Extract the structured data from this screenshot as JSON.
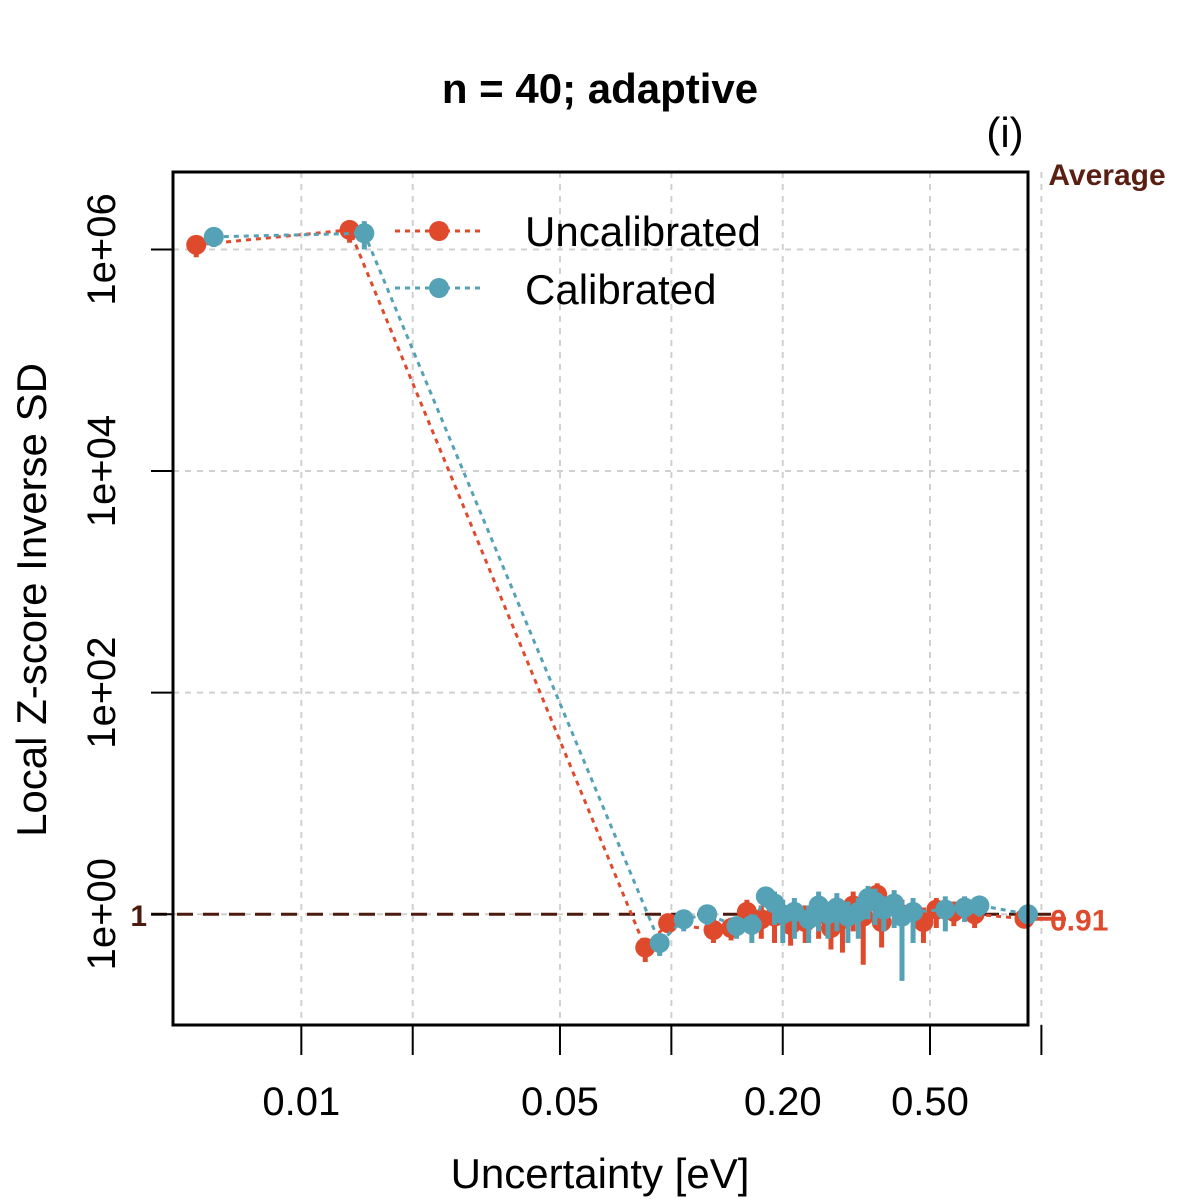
{
  "chart_data": {
    "type": "scatter",
    "title": "n = 40; adaptive",
    "panel_tag": "(i)",
    "xlabel": "Uncertainty [eV]",
    "ylabel": "Local Z-score Inverse SD",
    "x_scale": "log",
    "y_scale": "log",
    "xlim": [
      0.0045,
      0.92
    ],
    "ylim": [
      0.1,
      5000000
    ],
    "x_ticks": [
      {
        "value": 0.01,
        "label": "0.01"
      },
      {
        "value": 0.02,
        "label": ""
      },
      {
        "value": 0.05,
        "label": "0.05"
      },
      {
        "value": 0.1,
        "label": ""
      },
      {
        "value": 0.2,
        "label": "0.20"
      },
      {
        "value": 0.5,
        "label": "0.50"
      },
      {
        "value": 1.0,
        "label": ""
      }
    ],
    "y_ticks": [
      {
        "value": 1,
        "label": "1e+00"
      },
      {
        "value": 100,
        "label": "1e+02"
      },
      {
        "value": 10000,
        "label": "1e+04"
      },
      {
        "value": 1000000,
        "label": "1e+06"
      }
    ],
    "grid": true,
    "legend_position": "top-center",
    "average_label": "Average",
    "reference": {
      "value": 1,
      "label": "1",
      "color": "#4d1a0e"
    },
    "series": [
      {
        "name": "Uncalibrated",
        "color": "#e04a2c",
        "average": {
          "value": 0.91,
          "label": "0.91"
        },
        "points": [
          {
            "x": 0.0052,
            "y": 1100000,
            "lo": 850000,
            "hi": 1300000
          },
          {
            "x": 0.0135,
            "y": 1500000,
            "lo": 1150000,
            "hi": 1800000
          },
          {
            "x": 0.085,
            "y": 0.5,
            "lo": 0.37,
            "hi": 0.6
          },
          {
            "x": 0.098,
            "y": 0.83,
            "lo": 0.68,
            "hi": 0.97
          },
          {
            "x": 0.13,
            "y": 0.72,
            "lo": 0.55,
            "hi": 0.92
          },
          {
            "x": 0.145,
            "y": 0.75,
            "lo": 0.58,
            "hi": 0.93
          },
          {
            "x": 0.16,
            "y": 1.05,
            "lo": 0.72,
            "hi": 1.35
          },
          {
            "x": 0.175,
            "y": 0.9,
            "lo": 0.6,
            "hi": 1.2
          },
          {
            "x": 0.19,
            "y": 0.95,
            "lo": 0.55,
            "hi": 1.3
          },
          {
            "x": 0.21,
            "y": 0.8,
            "lo": 0.52,
            "hi": 1.1
          },
          {
            "x": 0.23,
            "y": 0.85,
            "lo": 0.55,
            "hi": 1.2
          },
          {
            "x": 0.25,
            "y": 1.0,
            "lo": 0.6,
            "hi": 1.4
          },
          {
            "x": 0.27,
            "y": 0.75,
            "lo": 0.48,
            "hi": 1.05
          },
          {
            "x": 0.29,
            "y": 0.9,
            "lo": 0.45,
            "hi": 1.25
          },
          {
            "x": 0.31,
            "y": 1.2,
            "lo": 0.7,
            "hi": 1.6
          },
          {
            "x": 0.33,
            "y": 0.95,
            "lo": 0.35,
            "hi": 1.35
          },
          {
            "x": 0.36,
            "y": 1.5,
            "lo": 0.9,
            "hi": 1.9
          },
          {
            "x": 0.37,
            "y": 0.85,
            "lo": 0.5,
            "hi": 1.2
          },
          {
            "x": 0.42,
            "y": 1.0,
            "lo": 0.6,
            "hi": 1.35
          },
          {
            "x": 0.48,
            "y": 0.85,
            "lo": 0.55,
            "hi": 1.15
          },
          {
            "x": 0.52,
            "y": 1.1,
            "lo": 0.75,
            "hi": 1.4
          },
          {
            "x": 0.58,
            "y": 1.05,
            "lo": 0.78,
            "hi": 1.3
          },
          {
            "x": 0.66,
            "y": 1.0,
            "lo": 0.75,
            "hi": 1.28
          },
          {
            "x": 0.9,
            "y": 0.91,
            "lo": 0.75,
            "hi": 1.05
          }
        ]
      },
      {
        "name": "Calibrated",
        "color": "#55a1b6",
        "points": [
          {
            "x": 0.0058,
            "y": 1300000,
            "lo": 1050000,
            "hi": 1550000
          },
          {
            "x": 0.0148,
            "y": 1400000,
            "lo": 1000000,
            "hi": 1800000
          },
          {
            "x": 0.093,
            "y": 0.55,
            "lo": 0.42,
            "hi": 0.67
          },
          {
            "x": 0.108,
            "y": 0.9,
            "lo": 0.7,
            "hi": 1.1
          },
          {
            "x": 0.125,
            "y": 1.0,
            "lo": 0.8,
            "hi": 1.2
          },
          {
            "x": 0.15,
            "y": 0.78,
            "lo": 0.6,
            "hi": 0.95
          },
          {
            "x": 0.165,
            "y": 0.8,
            "lo": 0.55,
            "hi": 1.0
          },
          {
            "x": 0.18,
            "y": 1.45,
            "lo": 1.15,
            "hi": 1.75
          },
          {
            "x": 0.19,
            "y": 1.25,
            "lo": 0.8,
            "hi": 1.6
          },
          {
            "x": 0.2,
            "y": 1.0,
            "lo": 0.55,
            "hi": 1.35
          },
          {
            "x": 0.215,
            "y": 1.05,
            "lo": 0.6,
            "hi": 1.4
          },
          {
            "x": 0.235,
            "y": 0.9,
            "lo": 0.55,
            "hi": 1.2
          },
          {
            "x": 0.25,
            "y": 1.2,
            "lo": 0.7,
            "hi": 1.6
          },
          {
            "x": 0.265,
            "y": 1.0,
            "lo": 0.6,
            "hi": 1.3
          },
          {
            "x": 0.28,
            "y": 1.15,
            "lo": 0.7,
            "hi": 1.55
          },
          {
            "x": 0.3,
            "y": 0.95,
            "lo": 0.55,
            "hi": 1.3
          },
          {
            "x": 0.32,
            "y": 1.05,
            "lo": 0.6,
            "hi": 1.4
          },
          {
            "x": 0.34,
            "y": 1.4,
            "lo": 0.9,
            "hi": 1.8
          },
          {
            "x": 0.355,
            "y": 1.3,
            "lo": 0.8,
            "hi": 1.7
          },
          {
            "x": 0.375,
            "y": 1.1,
            "lo": 0.7,
            "hi": 1.45
          },
          {
            "x": 0.4,
            "y": 1.25,
            "lo": 0.75,
            "hi": 1.65
          },
          {
            "x": 0.42,
            "y": 0.95,
            "lo": 0.25,
            "hi": 1.3
          },
          {
            "x": 0.45,
            "y": 1.05,
            "lo": 0.55,
            "hi": 1.4
          },
          {
            "x": 0.55,
            "y": 1.1,
            "lo": 0.7,
            "hi": 1.45
          },
          {
            "x": 0.62,
            "y": 1.15,
            "lo": 0.85,
            "hi": 1.45
          },
          {
            "x": 0.68,
            "y": 1.2,
            "lo": 0.95,
            "hi": 1.45
          },
          {
            "x": 0.92,
            "y": 1.0,
            "lo": 0.85,
            "hi": 1.15
          }
        ]
      }
    ]
  }
}
